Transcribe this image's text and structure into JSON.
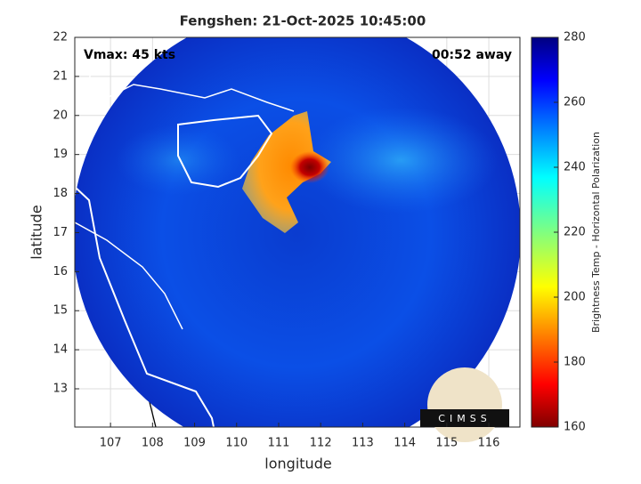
{
  "chart_data": {
    "type": "swath-map",
    "title": "Fengshen: 21-Oct-2025 10:45:00",
    "annotations": [
      "Vmax: 45 kts",
      "00:52 away"
    ],
    "x_label": "longitude",
    "y_label": "latitude",
    "xlim": [
      106.15,
      116.74
    ],
    "ylim": [
      12.02,
      22
    ],
    "xticks": [
      107,
      108,
      109,
      110,
      111,
      112,
      113,
      114,
      115,
      116
    ],
    "yticks": [
      13,
      14,
      15,
      16,
      17,
      18,
      19,
      20,
      21,
      22
    ],
    "grid": true,
    "colorbar": {
      "label": "Brightness Temp - Horizontal Polarization",
      "lim": [
        160,
        280
      ],
      "ticks": [
        160,
        180,
        200,
        220,
        240,
        260,
        280
      ],
      "colormap": "jet"
    },
    "logo": "CIMSS"
  }
}
